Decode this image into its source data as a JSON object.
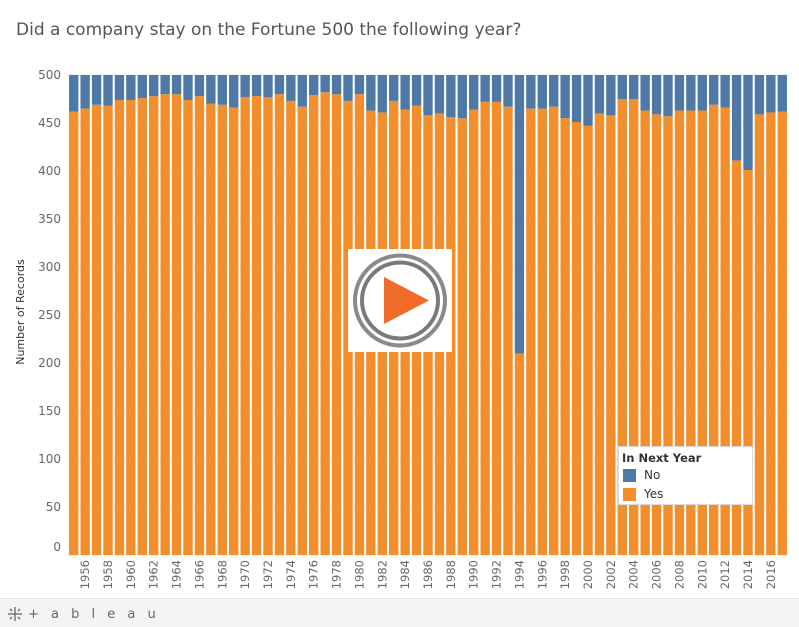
{
  "title": "Did a company stay on the Fortune 500 the following year?",
  "colors": {
    "no": "#4e79a7",
    "yes": "#f28e2b",
    "grid": "#e6e6e6",
    "axis_text": "#666666"
  },
  "legend": {
    "title": "In Next Year",
    "items": [
      {
        "label": "No",
        "color": "#4e79a7"
      },
      {
        "label": "Yes",
        "color": "#f28e2b"
      }
    ]
  },
  "footer": {
    "logo_text": "+ a b l e a u",
    "brand": "tableau"
  },
  "play_icon": "play-button-icon",
  "chart_data": {
    "type": "bar",
    "stacked": true,
    "title": "Did a company stay on the Fortune 500 the following year?",
    "xlabel": "",
    "ylabel": "Number of Records",
    "ylim": [
      0,
      500
    ],
    "yticks": [
      0,
      50,
      100,
      150,
      200,
      250,
      300,
      350,
      400,
      450,
      500
    ],
    "grid": true,
    "legend_position": "bottom-right",
    "categories": [
      "1955",
      "1956",
      "1957",
      "1958",
      "1959",
      "1960",
      "1961",
      "1962",
      "1963",
      "1964",
      "1965",
      "1966",
      "1967",
      "1968",
      "1969",
      "1970",
      "1971",
      "1972",
      "1973",
      "1974",
      "1975",
      "1976",
      "1977",
      "1978",
      "1979",
      "1980",
      "1981",
      "1982",
      "1983",
      "1984",
      "1985",
      "1986",
      "1987",
      "1988",
      "1989",
      "1990",
      "1991",
      "1992",
      "1993",
      "1994",
      "1995",
      "1996",
      "1997",
      "1998",
      "1999",
      "2000",
      "2001",
      "2002",
      "2003",
      "2004",
      "2005",
      "2006",
      "2007",
      "2008",
      "2009",
      "2010",
      "2011",
      "2012",
      "2013",
      "2014",
      "2015",
      "2016",
      "2017"
    ],
    "x_tick_labels": [
      "1956",
      "1958",
      "1960",
      "1962",
      "1964",
      "1966",
      "1968",
      "1970",
      "1972",
      "1974",
      "1976",
      "1978",
      "1980",
      "1982",
      "1984",
      "1986",
      "1988",
      "1990",
      "1992",
      "1994",
      "1996",
      "1998",
      "2000",
      "2002",
      "2004",
      "2006",
      "2008",
      "2010",
      "2012",
      "2014",
      "2016"
    ],
    "series": [
      {
        "name": "Yes",
        "color": "#f28e2b",
        "values": [
          462,
          465,
          469,
          468,
          474,
          474,
          476,
          478,
          480,
          480,
          474,
          478,
          470,
          469,
          466,
          477,
          478,
          477,
          480,
          473,
          467,
          479,
          482,
          480,
          473,
          480,
          463,
          461,
          473,
          464,
          468,
          458,
          460,
          456,
          455,
          464,
          472,
          472,
          467,
          210,
          465,
          465,
          467,
          455,
          451,
          447,
          460,
          458,
          475,
          475,
          463,
          459,
          457,
          463,
          463,
          463,
          469,
          466,
          411,
          401,
          459,
          461,
          462
        ]
      },
      {
        "name": "No",
        "color": "#4e79a7",
        "values": [
          38,
          35,
          31,
          32,
          26,
          26,
          24,
          22,
          20,
          20,
          26,
          22,
          30,
          31,
          34,
          23,
          22,
          23,
          20,
          27,
          33,
          21,
          18,
          20,
          27,
          20,
          37,
          39,
          27,
          36,
          32,
          42,
          40,
          44,
          45,
          36,
          28,
          28,
          33,
          290,
          35,
          35,
          33,
          45,
          49,
          53,
          40,
          42,
          25,
          25,
          37,
          41,
          43,
          37,
          37,
          37,
          31,
          34,
          89,
          99,
          41,
          39,
          38
        ]
      }
    ]
  }
}
